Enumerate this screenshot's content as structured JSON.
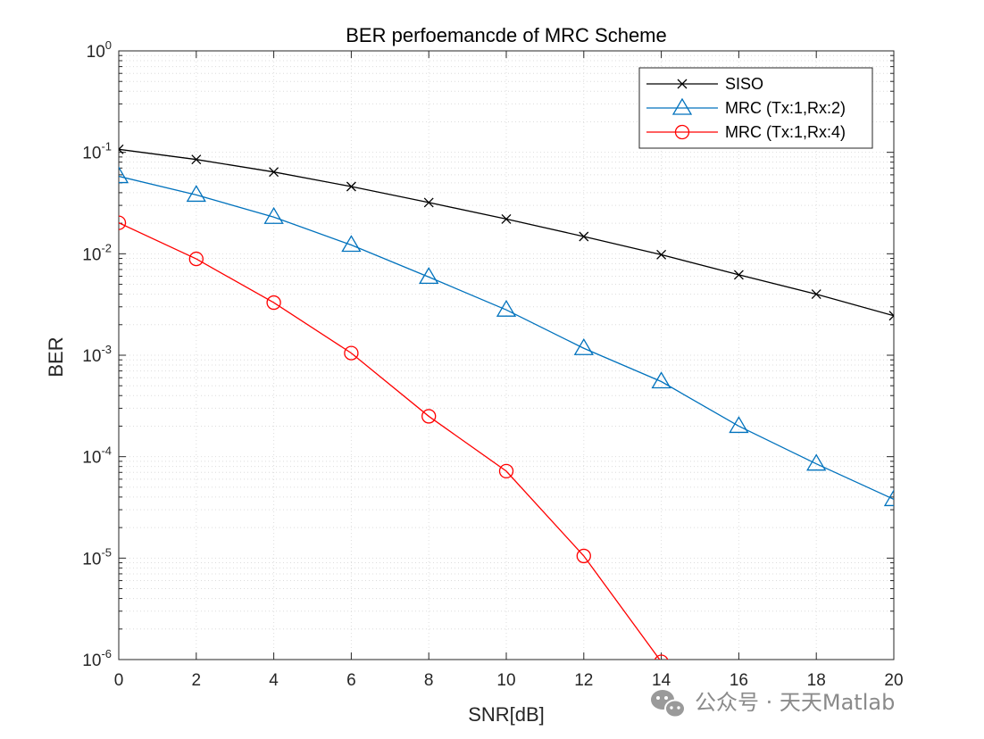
{
  "chart_data": {
    "type": "line",
    "title": "BER perfoemancde of MRC Scheme",
    "xlabel": "SNR[dB]",
    "ylabel": "BER",
    "xscale": "linear",
    "yscale": "log",
    "xlim": [
      0,
      20
    ],
    "ylim": [
      1e-06,
      1
    ],
    "grid": true,
    "minor_grid": true,
    "legend_location": "top-right",
    "x_ticks": [
      0,
      2,
      4,
      6,
      8,
      10,
      12,
      14,
      16,
      18,
      20
    ],
    "y_ticks": [
      {
        "base": "10",
        "exp": "-6",
        "value": 1e-06
      },
      {
        "base": "10",
        "exp": "-5",
        "value": 1e-05
      },
      {
        "base": "10",
        "exp": "-4",
        "value": 0.0001
      },
      {
        "base": "10",
        "exp": "-3",
        "value": 0.001
      },
      {
        "base": "10",
        "exp": "-2",
        "value": 0.01
      },
      {
        "base": "10",
        "exp": "-1",
        "value": 0.1
      },
      {
        "base": "10",
        "exp": "0",
        "value": 1
      }
    ],
    "series": [
      {
        "name": "SISO",
        "color": "#000000",
        "marker": "x",
        "x": [
          0,
          2,
          4,
          6,
          8,
          10,
          12,
          14,
          16,
          18,
          20
        ],
        "values": [
          0.107,
          0.085,
          0.064,
          0.046,
          0.032,
          0.022,
          0.0148,
          0.0098,
          0.0062,
          0.004,
          0.00245
        ]
      },
      {
        "name": "MRC (Tx:1,Rx:2)",
        "color": "#0072BD",
        "marker": "triangle",
        "x": [
          0,
          2,
          4,
          6,
          8,
          10,
          12,
          14,
          16,
          18,
          20
        ],
        "values": [
          0.058,
          0.038,
          0.023,
          0.0122,
          0.0059,
          0.0028,
          0.00117,
          0.00055,
          0.0002,
          8.5e-05,
          3.8e-05
        ]
      },
      {
        "name": "MRC (Tx:1,Rx:4)",
        "color": "#FF0000",
        "marker": "circle",
        "x": [
          0,
          2,
          4,
          6,
          8,
          10,
          12,
          14
        ],
        "values": [
          0.0202,
          0.0089,
          0.0033,
          0.00105,
          0.00025,
          7.2e-05,
          1.05e-05,
          9.5e-07
        ]
      }
    ]
  },
  "watermark": {
    "icon": "wechat-icon",
    "text": "公众号 · 天天Matlab"
  }
}
